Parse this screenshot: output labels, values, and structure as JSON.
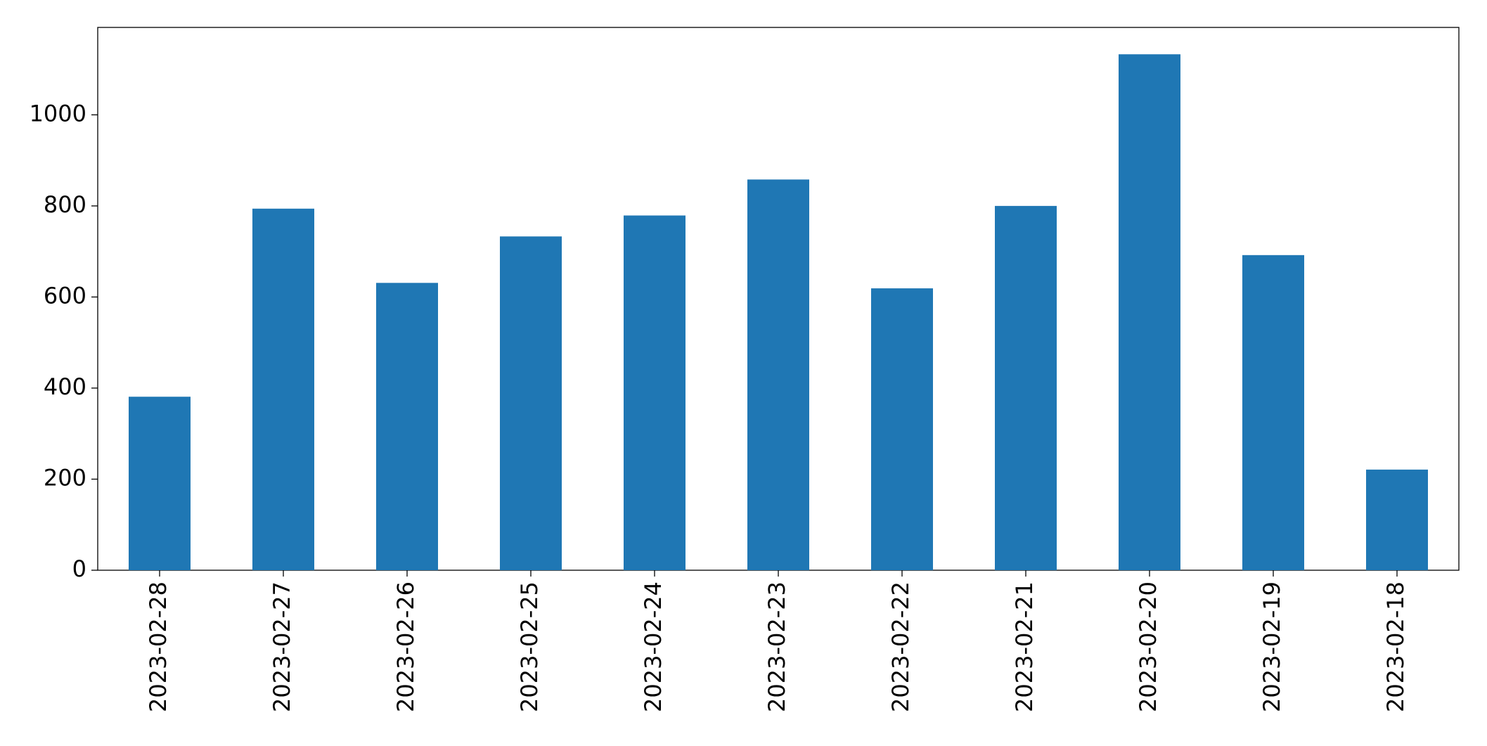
{
  "chart_data": {
    "type": "bar",
    "categories": [
      "2023-02-28",
      "2023-02-27",
      "2023-02-26",
      "2023-02-25",
      "2023-02-24",
      "2023-02-23",
      "2023-02-22",
      "2023-02-21",
      "2023-02-20",
      "2023-02-19",
      "2023-02-18"
    ],
    "values": [
      381,
      794,
      631,
      733,
      779,
      858,
      619,
      800,
      1133,
      692,
      221
    ],
    "color": "#1f77b4",
    "ylim": [
      0,
      1192
    ],
    "yticks": [
      0,
      200,
      400,
      600,
      800,
      1000
    ],
    "grid": false
  }
}
